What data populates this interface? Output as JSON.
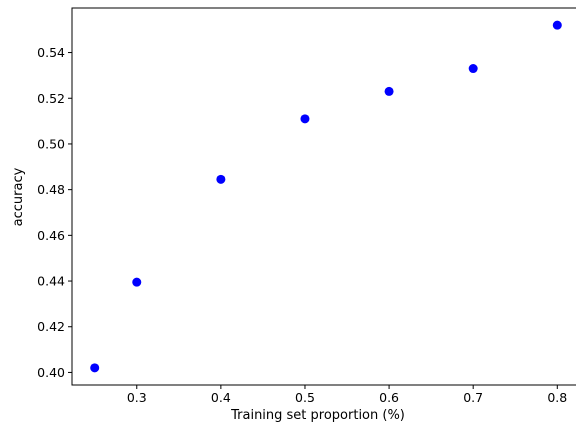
{
  "chart_data": {
    "type": "scatter",
    "xlabel": "Training set proportion (%)",
    "ylabel": "accuracy",
    "xlim": [
      0.223,
      0.827
    ],
    "ylim": [
      0.3945,
      0.5595
    ],
    "x_ticks": [
      0.3,
      0.4,
      0.5,
      0.6,
      0.7,
      0.8
    ],
    "x_tick_labels": [
      "0.3",
      "0.4",
      "0.5",
      "0.6",
      "0.7",
      "0.8"
    ],
    "y_ticks": [
      0.4,
      0.42,
      0.44,
      0.46,
      0.48,
      0.5,
      0.52,
      0.54
    ],
    "y_tick_labels": [
      "0.40",
      "0.42",
      "0.44",
      "0.46",
      "0.48",
      "0.50",
      "0.52",
      "0.54"
    ],
    "grid": false,
    "series": [
      {
        "color": "#0000ff",
        "x": [
          0.25,
          0.3,
          0.4,
          0.5,
          0.6,
          0.7,
          0.8
        ],
        "y": [
          0.402,
          0.4395,
          0.4845,
          0.511,
          0.523,
          0.533,
          0.552
        ]
      }
    ]
  }
}
